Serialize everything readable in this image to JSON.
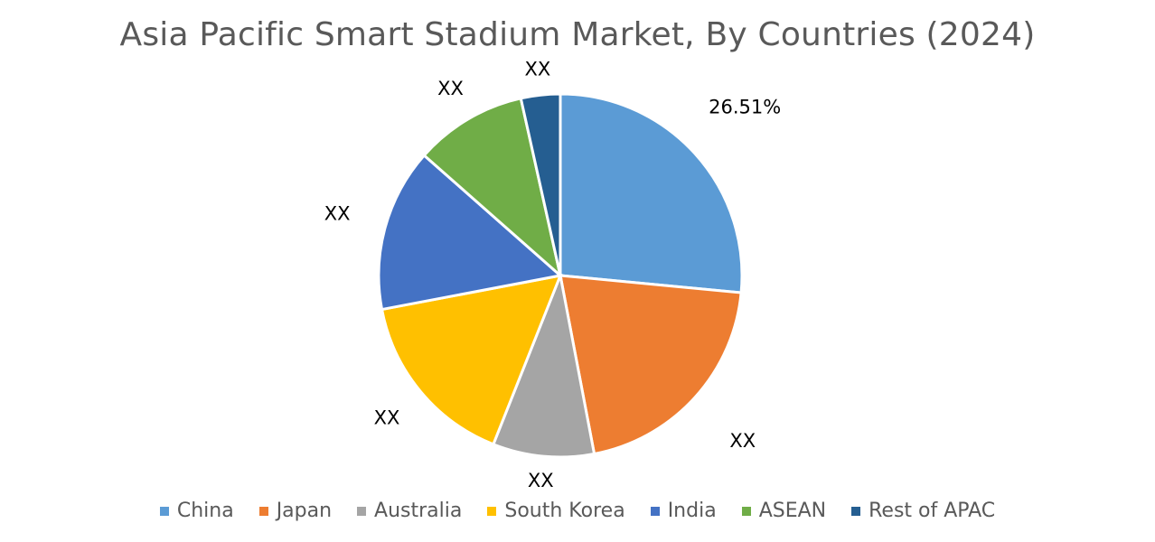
{
  "chart_data": {
    "type": "pie",
    "title": "Asia Pacific Smart Stadium Market, By Countries (2024)",
    "categories": [
      "China",
      "Japan",
      "Australia",
      "South Korea",
      "India",
      "ASEAN",
      "Rest of APAC"
    ],
    "values": [
      26.51,
      20.5,
      9.0,
      16.0,
      14.5,
      10.0,
      3.49
    ],
    "data_labels": [
      "26.51%",
      "XX",
      "XX",
      "XX",
      "XX",
      "XX",
      "XX"
    ],
    "colors": [
      "#5B9BD5",
      "#ED7D31",
      "#A5A5A5",
      "#FFC000",
      "#4472C4",
      "#70AD47",
      "#255E91"
    ],
    "legend_position": "bottom",
    "start_angle_deg": 0,
    "direction": "clockwise"
  }
}
